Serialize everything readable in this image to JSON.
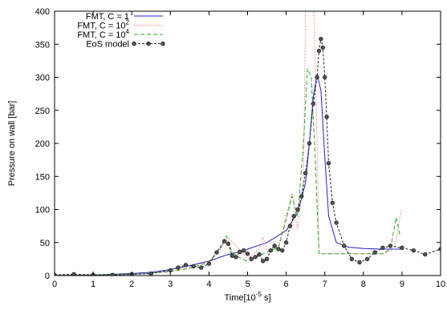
{
  "chart_data": {
    "type": "line",
    "xlabel_prefix": "Time[10",
    "xlabel_exp": "-5",
    "xlabel_suffix": " s]",
    "ylabel": "Pressure on wall [bar]",
    "xlim": [
      0,
      10
    ],
    "ylim": [
      0,
      400
    ],
    "xticks": [
      0,
      1,
      2,
      3,
      4,
      5,
      6,
      7,
      8,
      9,
      10
    ],
    "yticks": [
      0,
      50,
      100,
      150,
      200,
      250,
      300,
      350,
      400
    ],
    "grid": false,
    "legend_position": "top-left",
    "series": [
      {
        "name": "FMT, C = 1",
        "name_base": "FMT, C = 1",
        "name_exp": "",
        "color": "#2222cc",
        "dash": "",
        "markers": false,
        "x": [
          0,
          1,
          2,
          2.5,
          3,
          3.5,
          4,
          4.3,
          4.5,
          4.8,
          5,
          5.5,
          6,
          6.3,
          6.5,
          6.6,
          6.7,
          6.8,
          6.9,
          7.0,
          7.1,
          7.3,
          7.6,
          8,
          8.5,
          9
        ],
        "y": [
          0,
          1,
          3,
          5,
          9,
          15,
          22,
          28,
          32,
          36,
          40,
          50,
          68,
          95,
          140,
          200,
          270,
          305,
          280,
          180,
          90,
          50,
          43,
          41,
          40,
          40
        ]
      },
      {
        "name": "FMT, C = 10^2",
        "name_base": "FMT, C = 10",
        "name_exp": "2",
        "color": "#ff7777",
        "dash": "1.5,2",
        "markers": false,
        "x": [
          0,
          1,
          2,
          3,
          3.5,
          4,
          4.3,
          4.5,
          4.7,
          5,
          5.3,
          5.4,
          5.5,
          5.8,
          6,
          6.15,
          6.3,
          6.45,
          6.5,
          6.55,
          6.6,
          6.65,
          6.7,
          6.72,
          6.8,
          6.85,
          6.9,
          7.2,
          8,
          8.5,
          8.8,
          8.95,
          9.0
        ],
        "y": [
          0,
          1,
          2,
          6,
          12,
          22,
          40,
          58,
          45,
          25,
          40,
          58,
          38,
          45,
          90,
          125,
          70,
          150,
          400,
          400,
          400,
          400,
          400,
          400,
          200,
          33,
          33,
          33,
          33,
          33,
          40,
          90,
          100
        ]
      },
      {
        "name": "FMT, C = 10^4",
        "name_base": "FMT, C = 10",
        "name_exp": "4",
        "color": "#22aa22",
        "dash": "5,3",
        "markers": false,
        "x": [
          0,
          1,
          2,
          3,
          3.5,
          4,
          4.3,
          4.45,
          4.6,
          4.8,
          5,
          5.3,
          5.6,
          5.8,
          6,
          6.15,
          6.3,
          6.45,
          6.55,
          6.65,
          6.75,
          6.85,
          7.0,
          7.5,
          8,
          8.5,
          8.7,
          8.85,
          8.95
        ],
        "y": [
          0,
          1,
          2,
          6,
          11,
          20,
          42,
          60,
          35,
          27,
          22,
          30,
          38,
          42,
          85,
          120,
          90,
          200,
          313,
          300,
          180,
          33,
          33,
          33,
          33,
          33,
          40,
          88,
          60
        ]
      },
      {
        "name": "EoS model",
        "name_base": "EoS model",
        "name_exp": "",
        "color": "#222222",
        "dash": "3,2",
        "markers": true,
        "x": [
          0,
          0.5,
          1,
          1.5,
          2,
          2.5,
          3,
          3.2,
          3.4,
          3.6,
          3.8,
          4,
          4.2,
          4.4,
          4.5,
          4.6,
          4.7,
          4.8,
          4.9,
          5.0,
          5.1,
          5.2,
          5.3,
          5.4,
          5.5,
          5.6,
          5.7,
          5.8,
          5.9,
          6.0,
          6.1,
          6.2,
          6.3,
          6.4,
          6.5,
          6.6,
          6.7,
          6.8,
          6.85,
          6.9,
          6.95,
          7.0,
          7.05,
          7.1,
          7.2,
          7.3,
          7.5,
          7.7,
          7.9,
          8.1,
          8.3,
          8.5,
          8.7,
          9.0,
          9.3,
          9.6,
          10
        ],
        "y": [
          1,
          2,
          1,
          1,
          2,
          3,
          8,
          12,
          16,
          14,
          12,
          18,
          35,
          52,
          48,
          30,
          28,
          36,
          38,
          33,
          25,
          28,
          32,
          22,
          25,
          38,
          45,
          40,
          38,
          50,
          75,
          90,
          100,
          120,
          155,
          200,
          260,
          300,
          340,
          358,
          345,
          300,
          240,
          170,
          110,
          80,
          45,
          25,
          20,
          25,
          35,
          42,
          45,
          42,
          38,
          32,
          40
        ]
      }
    ]
  }
}
